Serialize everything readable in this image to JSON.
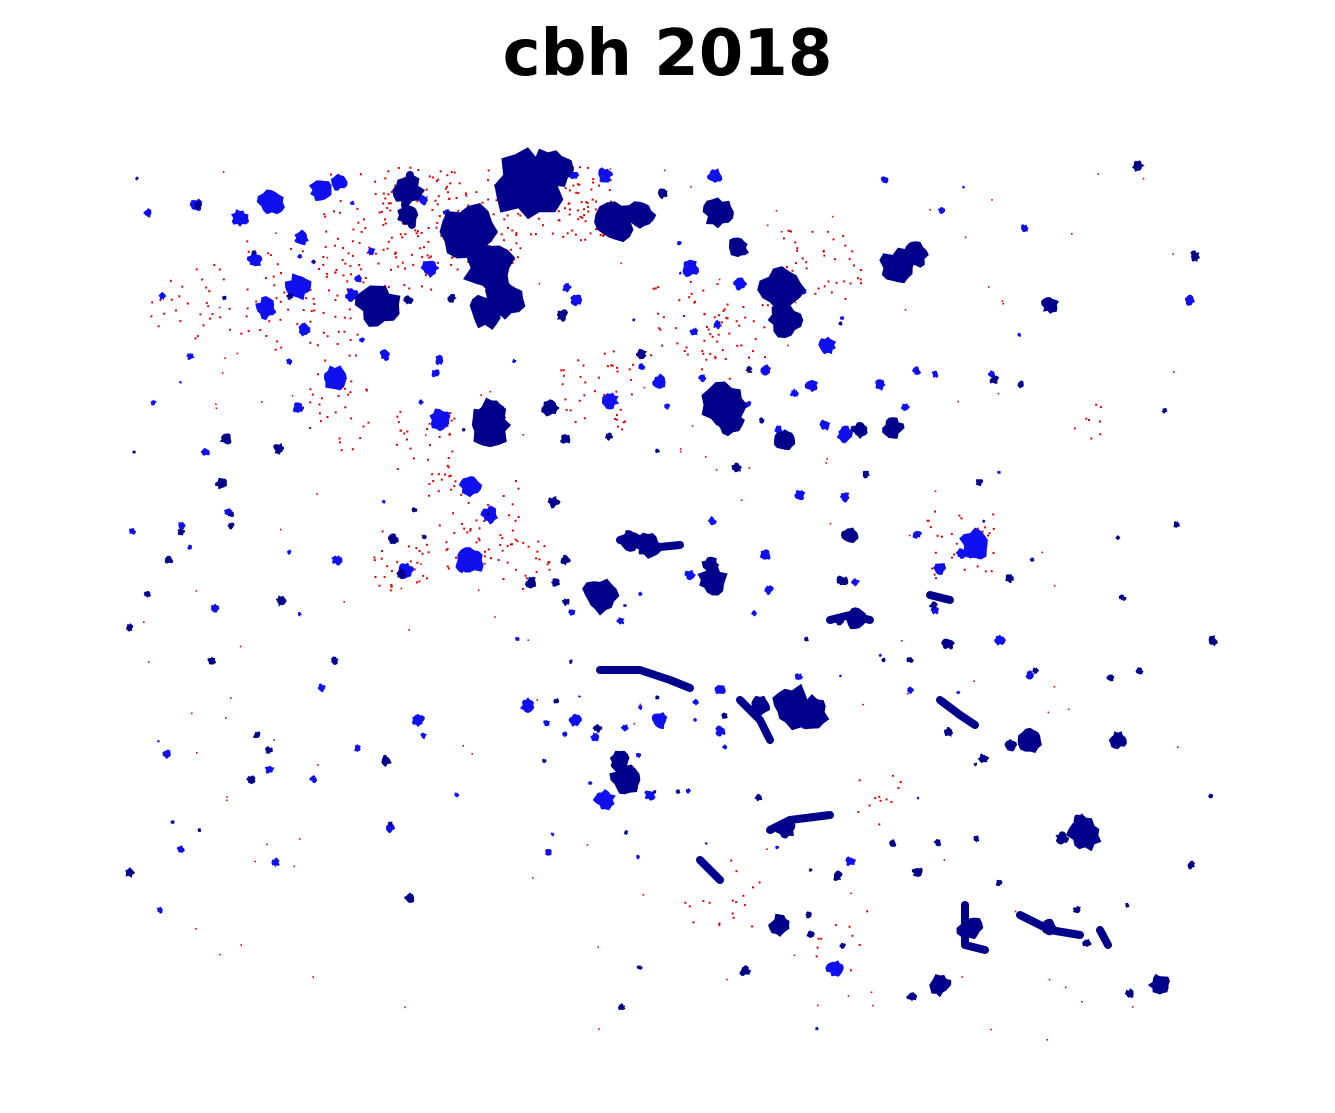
{
  "title": "cbh 2018",
  "colors": {
    "background": "#ffffff",
    "dark_patch": "#00008b",
    "blue_patch": "#1010ee",
    "red_speck": "#dd0000"
  }
}
